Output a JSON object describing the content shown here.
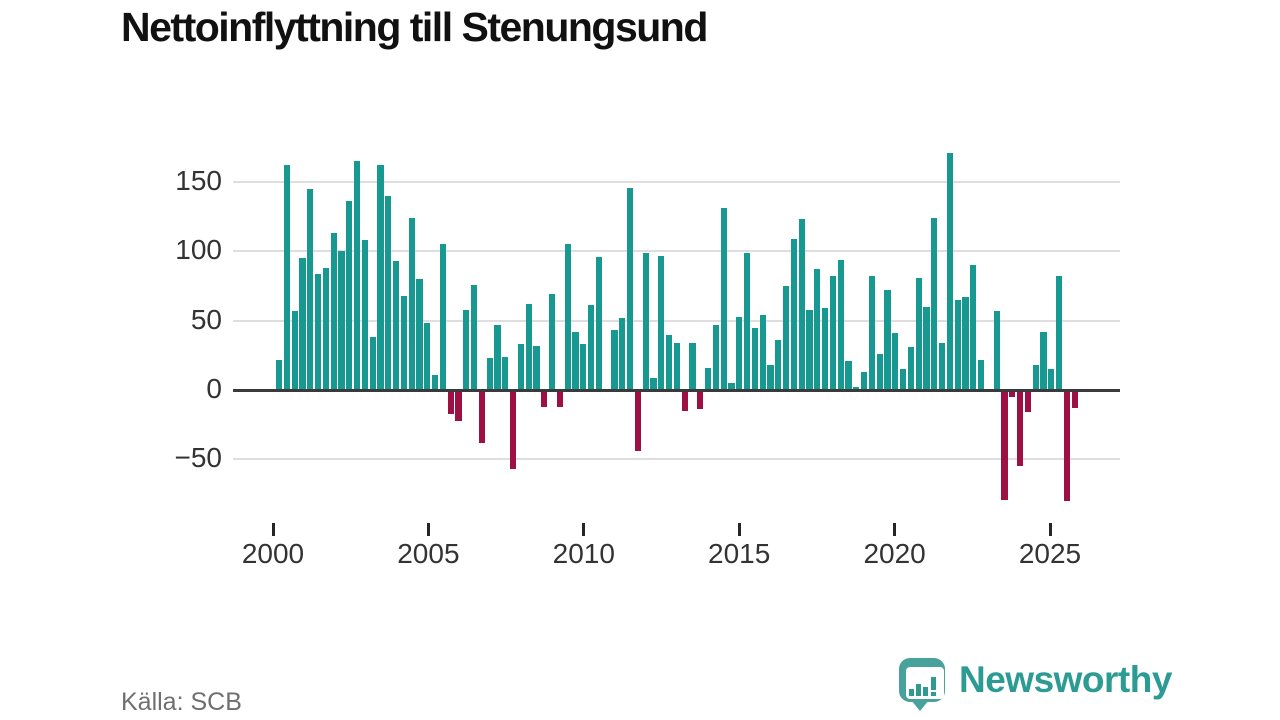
{
  "title": "Nettoinflyttning till Stenungsund",
  "source": "Källa: SCB",
  "brand": {
    "name": "Newsworthy",
    "logo_icon": "newsworthy-speech-bubble-barchart-icon"
  },
  "colors": {
    "positive": "#179991",
    "negative": "#9e1043",
    "grid": "#dedede",
    "zero_axis": "#3a3a3a",
    "tick": "#262626",
    "axis_label": "#333333",
    "title_text": "#111111",
    "source_text": "#6f6f6f",
    "brand_teal": "#2b9b93",
    "logo_teal": "#48a19a"
  },
  "chart_data": {
    "type": "bar",
    "period": "quarterly",
    "first_period": "2000Q1",
    "last_period": "2025Q3",
    "values": [
      22,
      162,
      57,
      95,
      145,
      84,
      88,
      113,
      100,
      136,
      165,
      108,
      38,
      162,
      140,
      93,
      68,
      124,
      80,
      48,
      11,
      105,
      -17,
      -22,
      58,
      76,
      -38,
      23,
      47,
      24,
      -57,
      33,
      62,
      32,
      -12,
      69,
      -12,
      105,
      42,
      33,
      61,
      96,
      0,
      43,
      52,
      146,
      -44,
      99,
      9,
      97,
      40,
      34,
      -15,
      34,
      -14,
      16,
      47,
      131,
      5,
      53,
      99,
      45,
      54,
      18,
      36,
      75,
      109,
      123,
      58,
      87,
      59,
      82,
      94,
      21,
      2,
      13,
      82,
      26,
      72,
      41,
      15,
      31,
      81,
      60,
      124,
      34,
      171,
      65,
      67,
      90,
      22,
      0,
      57,
      -79,
      -5,
      -55,
      -16,
      18,
      42,
      15,
      82,
      -80,
      -13
    ],
    "x_axis": {
      "tick_labels": [
        "2000",
        "2005",
        "2010",
        "2015",
        "2020",
        "2025"
      ],
      "tick_years": [
        2000,
        2005,
        2010,
        2015,
        2020,
        2025
      ]
    },
    "y_axis": {
      "ticks": [
        {
          "v": 150,
          "label": "150"
        },
        {
          "v": 100,
          "label": "100"
        },
        {
          "v": 50,
          "label": "50"
        },
        {
          "v": 0,
          "label": "0"
        },
        {
          "v": -50,
          "label": "−50"
        }
      ],
      "range_visible": [
        -90,
        177
      ]
    },
    "grid": true,
    "legend": false
  }
}
